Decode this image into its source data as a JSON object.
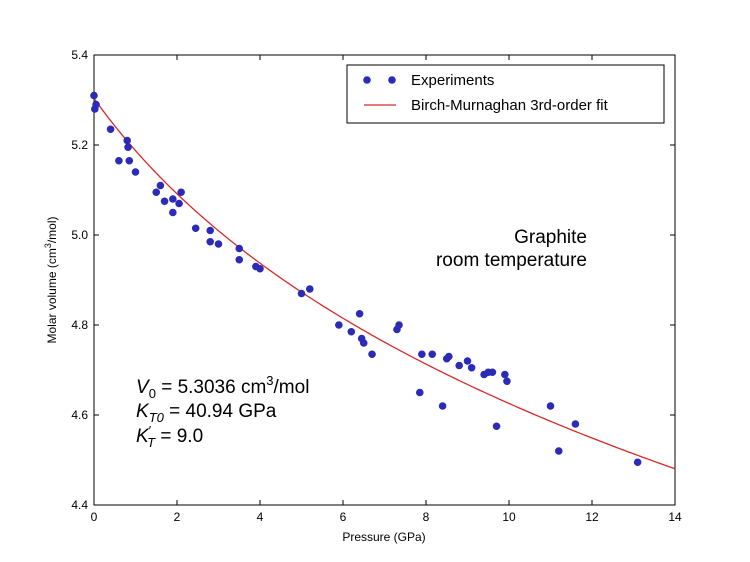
{
  "chart_data": {
    "type": "scatter",
    "xlabel": "Pressure (GPa)",
    "ylabel_main": "Molar volume (cm",
    "ylabel_sup": "3",
    "ylabel_tail": "/mol)",
    "xlim": [
      0,
      14
    ],
    "ylim": [
      4.4,
      5.4
    ],
    "x_ticks": [
      "0",
      "2",
      "4",
      "6",
      "8",
      "10",
      "12",
      "14"
    ],
    "y_ticks": [
      "4.4",
      "4.6",
      "4.8",
      "5.0",
      "5.2",
      "5.4"
    ],
    "grid": false,
    "legend_position": "top-right",
    "legend": [
      {
        "label": "Experiments",
        "marker": "circle",
        "color": "#2b2bb8"
      },
      {
        "label": "Birch-Murnaghan 3rd-order fit",
        "marker": "line",
        "color": "#d42a2a"
      }
    ],
    "annotation_lines": [
      "Graphite",
      "room temperature"
    ],
    "fit_parameters": {
      "v0_symbol": "V",
      "v0_sub": "0",
      "v0_eq": " = 5.3036 cm",
      "v0_sup": "3",
      "v0_unit": "/mol",
      "k_symbol": "K",
      "k_sub": "T0",
      "k_eq": " = 40.94 GPa",
      "kp_symbol": "K",
      "kp_prime": "′",
      "kp_sub": "T",
      "kp_eq": " = 9.0"
    },
    "fit_model": {
      "V0": 5.3036,
      "K0": 40.94,
      "K0p": 9.0
    },
    "series": [
      {
        "name": "Experiments",
        "color": "#2b2bb8",
        "points": [
          [
            0.0,
            5.31
          ],
          [
            0.02,
            5.28
          ],
          [
            0.05,
            5.29
          ],
          [
            0.4,
            5.235
          ],
          [
            0.6,
            5.165
          ],
          [
            0.8,
            5.21
          ],
          [
            0.82,
            5.195
          ],
          [
            0.85,
            5.165
          ],
          [
            1.0,
            5.14
          ],
          [
            1.5,
            5.095
          ],
          [
            1.6,
            5.11
          ],
          [
            1.7,
            5.075
          ],
          [
            1.9,
            5.05
          ],
          [
            1.9,
            5.08
          ],
          [
            2.05,
            5.07
          ],
          [
            2.1,
            5.095
          ],
          [
            2.45,
            5.015
          ],
          [
            2.8,
            5.01
          ],
          [
            2.8,
            4.985
          ],
          [
            3.0,
            4.98
          ],
          [
            3.5,
            4.945
          ],
          [
            3.5,
            4.97
          ],
          [
            3.9,
            4.93
          ],
          [
            4.0,
            4.925
          ],
          [
            5.0,
            4.87
          ],
          [
            5.2,
            4.88
          ],
          [
            5.9,
            4.8
          ],
          [
            6.2,
            4.785
          ],
          [
            6.4,
            4.825
          ],
          [
            6.45,
            4.77
          ],
          [
            6.5,
            4.76
          ],
          [
            6.7,
            4.735
          ],
          [
            7.3,
            4.79
          ],
          [
            7.35,
            4.8
          ],
          [
            7.85,
            4.65
          ],
          [
            7.9,
            4.735
          ],
          [
            8.15,
            4.735
          ],
          [
            8.4,
            4.62
          ],
          [
            8.5,
            4.725
          ],
          [
            8.55,
            4.73
          ],
          [
            8.8,
            4.71
          ],
          [
            9.0,
            4.72
          ],
          [
            9.1,
            4.705
          ],
          [
            9.4,
            4.69
          ],
          [
            9.5,
            4.695
          ],
          [
            9.6,
            4.695
          ],
          [
            9.7,
            4.575
          ],
          [
            9.9,
            4.69
          ],
          [
            9.95,
            4.675
          ],
          [
            11.0,
            4.62
          ],
          [
            11.2,
            4.52
          ],
          [
            11.6,
            4.58
          ],
          [
            13.1,
            4.495
          ]
        ]
      }
    ]
  }
}
